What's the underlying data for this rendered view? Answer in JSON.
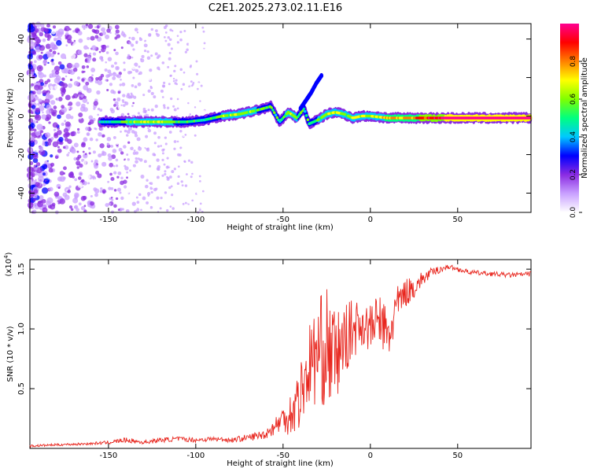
{
  "title": "C2E1.2025.273.02.11.E16",
  "chart_data": [
    {
      "type": "heatmap",
      "xlabel": "Height of straight line (km)",
      "ylabel": "Frequency (Hz)",
      "xlim": [
        -195,
        92
      ],
      "ylim": [
        -50,
        48
      ],
      "xticks": [
        -150,
        -100,
        -50,
        0,
        50
      ],
      "yticks": [
        -40,
        -20,
        0,
        20,
        40
      ],
      "colorbar": {
        "label": "Normalized spectral amplitude",
        "range": [
          0,
          1
        ],
        "ticks": [
          0.0,
          0.2,
          0.4,
          0.6,
          0.8
        ],
        "colors": [
          "#ffffff",
          "#c9a0ff",
          "#8a2be2",
          "#0000ff",
          "#00c8ff",
          "#00ff80",
          "#80ff00",
          "#ffff00",
          "#ff8000",
          "#ff0000",
          "#ff0090"
        ]
      },
      "ridge": {
        "x": [
          -155,
          -140,
          -120,
          -105,
          -95,
          -85,
          -75,
          -65,
          -57,
          -52,
          -47,
          -42,
          -38,
          -35,
          -30,
          -25,
          -20,
          -15,
          -10,
          -5,
          0,
          10,
          20,
          30,
          40,
          50,
          60,
          70,
          80,
          92
        ],
        "y": [
          -3,
          -3,
          -3,
          -3,
          -2,
          0,
          1,
          3,
          5,
          -3,
          2,
          -1,
          4,
          -4,
          -2,
          1,
          2,
          1,
          -1,
          0,
          0,
          -1,
          -1,
          -1,
          -1,
          -1,
          -1,
          -1,
          -1,
          -1
        ],
        "amplitude": [
          0.35,
          0.5,
          0.55,
          0.45,
          0.4,
          0.5,
          0.55,
          0.5,
          0.45,
          0.4,
          0.55,
          0.5,
          0.4,
          0.45,
          0.5,
          0.55,
          0.6,
          0.5,
          0.55,
          0.6,
          0.6,
          0.65,
          0.7,
          0.8,
          0.9,
          1.0,
          1.0,
          1.0,
          1.0,
          1.0
        ]
      },
      "branch": {
        "x": [
          -40,
          -37,
          -34,
          -31,
          -28
        ],
        "y": [
          4,
          8,
          12,
          17,
          21
        ]
      }
    },
    {
      "type": "line",
      "xlabel": "Height of straight line (km)",
      "ylabel": "SNR (10 * v/v)",
      "y_scale_label": "(x10",
      "y_scale_exp": "4",
      "y_scale_suffix": ")",
      "xlim": [
        -195,
        92
      ],
      "ylim": [
        0,
        1.58
      ],
      "xticks": [
        -150,
        -100,
        -50,
        0,
        50
      ],
      "yticks": [
        0.5,
        1.0,
        1.5
      ],
      "series": [
        {
          "color": "#e8261e",
          "x": [
            -195,
            -180,
            -160,
            -150,
            -140,
            -135,
            -130,
            -120,
            -110,
            -100,
            -90,
            -80,
            -70,
            -60,
            -55,
            -50,
            -45,
            -40,
            -35,
            -30,
            -25,
            -20,
            -15,
            -10,
            -5,
            0,
            5,
            10,
            15,
            20,
            25,
            30,
            35,
            40,
            45,
            50,
            55,
            60,
            70,
            80,
            92
          ],
          "y": [
            0.02,
            0.03,
            0.04,
            0.05,
            0.07,
            0.06,
            0.05,
            0.07,
            0.08,
            0.07,
            0.08,
            0.07,
            0.09,
            0.12,
            0.18,
            0.25,
            0.3,
            0.45,
            0.7,
            0.8,
            0.85,
            0.75,
            0.9,
            1.0,
            1.05,
            1.0,
            1.1,
            0.9,
            1.2,
            1.3,
            1.35,
            1.42,
            1.47,
            1.5,
            1.52,
            1.5,
            1.48,
            1.47,
            1.46,
            1.45,
            1.46
          ],
          "noise": [
            0.01,
            0.01,
            0.01,
            0.015,
            0.02,
            0.02,
            0.015,
            0.02,
            0.02,
            0.02,
            0.02,
            0.02,
            0.03,
            0.04,
            0.07,
            0.12,
            0.2,
            0.3,
            0.35,
            0.45,
            0.5,
            0.4,
            0.3,
            0.25,
            0.2,
            0.2,
            0.2,
            0.3,
            0.15,
            0.12,
            0.1,
            0.06,
            0.04,
            0.03,
            0.02,
            0.02,
            0.02,
            0.02,
            0.02,
            0.02,
            0.02
          ]
        }
      ]
    }
  ]
}
